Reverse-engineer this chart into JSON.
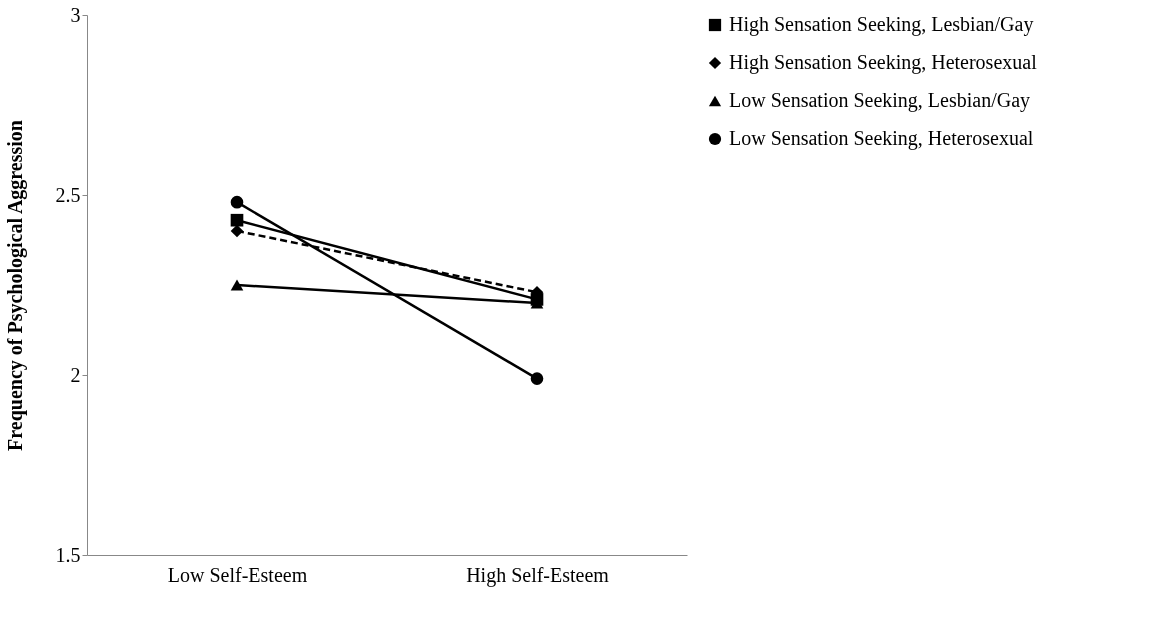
{
  "chart_data": {
    "type": "line",
    "ylabel": "Frequency of Psychological Aggression",
    "categories": [
      "Low Self-Esteem",
      "High Self-Esteem"
    ],
    "ylim": [
      1.5,
      3
    ],
    "yticks": [
      1.5,
      2,
      2.5,
      3
    ],
    "grid": false,
    "legend": "right",
    "series": [
      {
        "name": "High Sensation Seeking, Lesbian/Gay",
        "color": "#000000",
        "marker": "square",
        "line_style": "solid",
        "values": [
          2.43,
          2.21
        ]
      },
      {
        "name": "High Sensation Seeking, Heterosexual",
        "color": "#000000",
        "marker": "diamond",
        "line_style": "dashed",
        "values": [
          2.4,
          2.23
        ]
      },
      {
        "name": "Low Sensation Seeking, Lesbian/Gay",
        "color": "#000000",
        "marker": "triangle",
        "line_style": "solid",
        "values": [
          2.25,
          2.2
        ]
      },
      {
        "name": "Low Sensation Seeking, Heterosexual",
        "color": "#000000",
        "marker": "circle",
        "line_style": "solid",
        "values": [
          2.48,
          1.99
        ]
      }
    ]
  }
}
